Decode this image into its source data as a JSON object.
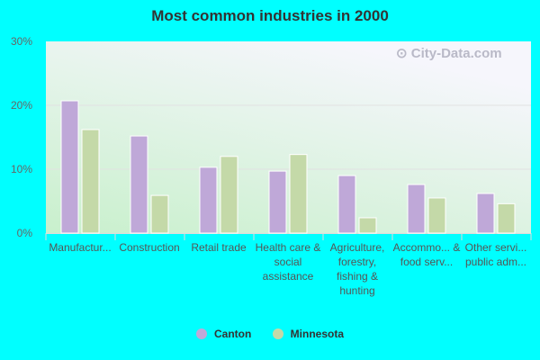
{
  "chart_data": {
    "type": "bar",
    "title": "Most common industries in 2000",
    "categories": [
      "Manufactur...",
      "Construction",
      "Retail trade",
      "Health care & social assistance",
      "Agriculture, forestry, fishing & hunting",
      "Accommo... & food serv...",
      "Other servi... public adm..."
    ],
    "series": [
      {
        "name": "Canton",
        "color": "#bfa8d8",
        "values": [
          20.7,
          15.2,
          10.3,
          9.7,
          9.0,
          7.6,
          6.2
        ]
      },
      {
        "name": "Minnesota",
        "color": "#c4d9a8",
        "values": [
          16.2,
          5.9,
          12.0,
          12.3,
          2.4,
          5.5,
          4.6
        ]
      }
    ],
    "yticks": [
      "0%",
      "10%",
      "20%",
      "30%"
    ],
    "ylim": [
      0,
      30
    ],
    "grid": true,
    "legend": "bottom",
    "watermark": "City-Data.com"
  }
}
